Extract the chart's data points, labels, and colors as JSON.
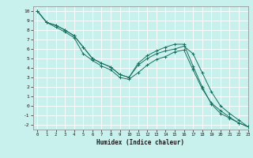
{
  "title": "",
  "xlabel": "Humidex (Indice chaleur)",
  "bg_color": "#c8f0ec",
  "grid_color": "#ffffff",
  "line_color": "#1a7060",
  "xlim": [
    -0.5,
    23
  ],
  "ylim": [
    -2.5,
    10.5
  ],
  "xticks": [
    0,
    1,
    2,
    3,
    4,
    5,
    6,
    7,
    8,
    9,
    10,
    11,
    12,
    13,
    14,
    15,
    16,
    17,
    18,
    19,
    20,
    21,
    22,
    23
  ],
  "yticks": [
    10,
    9,
    8,
    7,
    6,
    5,
    4,
    3,
    2,
    1,
    0,
    -1,
    -2
  ],
  "series1_x": [
    0,
    1,
    2,
    3,
    4,
    5,
    6,
    7,
    8,
    9,
    10,
    11,
    12,
    13,
    14,
    15,
    16,
    17,
    18,
    19,
    20,
    21,
    22,
    23
  ],
  "series1_y": [
    10.0,
    8.8,
    8.5,
    8.0,
    7.4,
    6.2,
    5.0,
    4.5,
    4.1,
    3.3,
    3.0,
    4.5,
    5.3,
    5.8,
    6.2,
    6.5,
    6.5,
    4.2,
    2.0,
    0.2,
    -0.8,
    -1.3,
    -1.8,
    -2.2
  ],
  "series2_x": [
    0,
    1,
    2,
    3,
    4,
    5,
    6,
    7,
    8,
    9,
    10,
    11,
    12,
    13,
    14,
    15,
    16,
    17,
    18,
    19,
    20,
    21,
    22,
    23
  ],
  "series2_y": [
    10.0,
    8.8,
    8.5,
    8.0,
    7.4,
    6.2,
    5.0,
    4.5,
    4.1,
    3.3,
    3.0,
    4.3,
    5.0,
    5.5,
    5.8,
    6.0,
    6.3,
    5.5,
    3.5,
    1.5,
    0.0,
    -0.8,
    -1.5,
    -2.2
  ],
  "series3_x": [
    0,
    1,
    2,
    3,
    4,
    5,
    6,
    7,
    8,
    9,
    10,
    11,
    12,
    13,
    14,
    15,
    16,
    17,
    18,
    19,
    20,
    21,
    22,
    23
  ],
  "series3_y": [
    10.0,
    8.8,
    8.3,
    7.8,
    7.2,
    5.5,
    4.8,
    4.2,
    3.8,
    3.0,
    2.8,
    3.5,
    4.3,
    4.9,
    5.2,
    5.7,
    5.9,
    3.8,
    1.8,
    0.3,
    -0.5,
    -1.2,
    -1.8,
    -2.2
  ]
}
